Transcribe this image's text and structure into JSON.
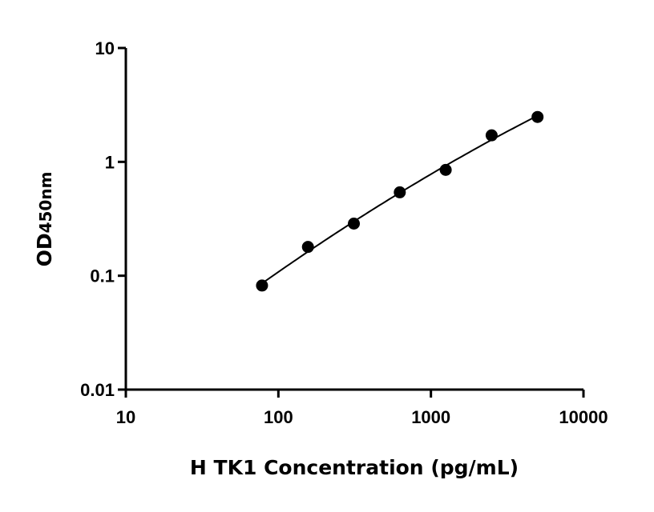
{
  "chart_data": {
    "type": "scatter",
    "title": "",
    "xlabel": "H TK1 Concentration (pg/mL)",
    "ylabel_main": "OD",
    "ylabel_sub": "450nm",
    "x_scale": "log",
    "y_scale": "log",
    "xlim": [
      10,
      10000
    ],
    "ylim": [
      0.01,
      10
    ],
    "x_ticks": [
      "10",
      "100",
      "1000",
      "10000"
    ],
    "y_ticks": [
      "0.01",
      "0.1",
      "1",
      "10"
    ],
    "grid": false,
    "legend": "none",
    "series": [
      {
        "x": [
          78.125,
          156.25,
          312.5,
          625,
          1250,
          2500,
          5000
        ],
        "y": [
          0.082,
          0.179,
          0.287,
          0.54,
          0.85,
          1.71,
          2.48
        ],
        "marker": "circle",
        "color": "#000000",
        "fit_curve": true
      }
    ]
  }
}
